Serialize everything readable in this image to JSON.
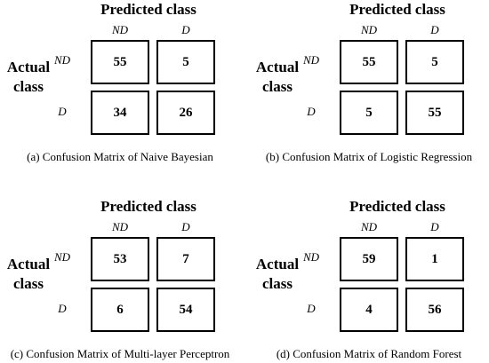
{
  "panels": [
    {
      "predicted_label": "Predicted class",
      "col_labels": [
        "ND",
        "D"
      ],
      "actual_label": "Actual class",
      "row_labels": [
        "ND",
        "D"
      ],
      "cells": [
        [
          55,
          5
        ],
        [
          34,
          26
        ]
      ],
      "caption": "(a) Confusion Matrix of Naive Bayesian"
    },
    {
      "predicted_label": "Predicted class",
      "col_labels": [
        "ND",
        "D"
      ],
      "actual_label": "Actual class",
      "row_labels": [
        "ND",
        "D"
      ],
      "cells": [
        [
          55,
          5
        ],
        [
          5,
          55
        ]
      ],
      "caption": "(b) Confusion Matrix of Logistic Regression"
    },
    {
      "predicted_label": "Predicted class",
      "col_labels": [
        "ND",
        "D"
      ],
      "actual_label": "Actual class",
      "row_labels": [
        "ND",
        "D"
      ],
      "cells": [
        [
          53,
          7
        ],
        [
          6,
          54
        ]
      ],
      "caption": "(c) Confusion Matrix of Multi-layer Perceptron"
    },
    {
      "predicted_label": "Predicted class",
      "col_labels": [
        "ND",
        "D"
      ],
      "actual_label": "Actual class",
      "row_labels": [
        "ND",
        "D"
      ],
      "cells": [
        [
          59,
          1
        ],
        [
          4,
          56
        ]
      ],
      "caption": "(d) Confusion Matrix of Random Forest"
    }
  ]
}
